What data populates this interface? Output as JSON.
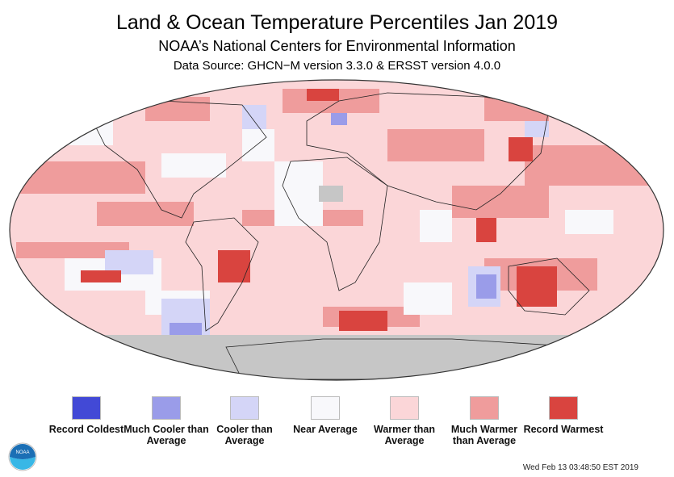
{
  "title": "Land & Ocean Temperature Percentiles Jan 2019",
  "subtitle": "NOAA’s National Centers for Environmental Information",
  "source": "Data Source: GHCN−M version 3.3.0 & ERSST version 4.0.0",
  "legend": [
    {
      "label": "Record Coldest",
      "color": "#4249d6"
    },
    {
      "label": "Much Cooler than Average",
      "color": "#9a9ce9"
    },
    {
      "label": "Cooler than Average",
      "color": "#d4d5f7"
    },
    {
      "label": "Near Average",
      "color": "#f8f8fb"
    },
    {
      "label": "Warmer than Average",
      "color": "#fbd6d8"
    },
    {
      "label": "Much Warmer than Average",
      "color": "#ef9c9c"
    },
    {
      "label": "Record Warmest",
      "color": "#d9443f"
    }
  ],
  "missing_color": "#c6c6c6",
  "timestamp": "Wed Feb 13 03:48:50 EST 2019",
  "logo": "NOAA"
}
